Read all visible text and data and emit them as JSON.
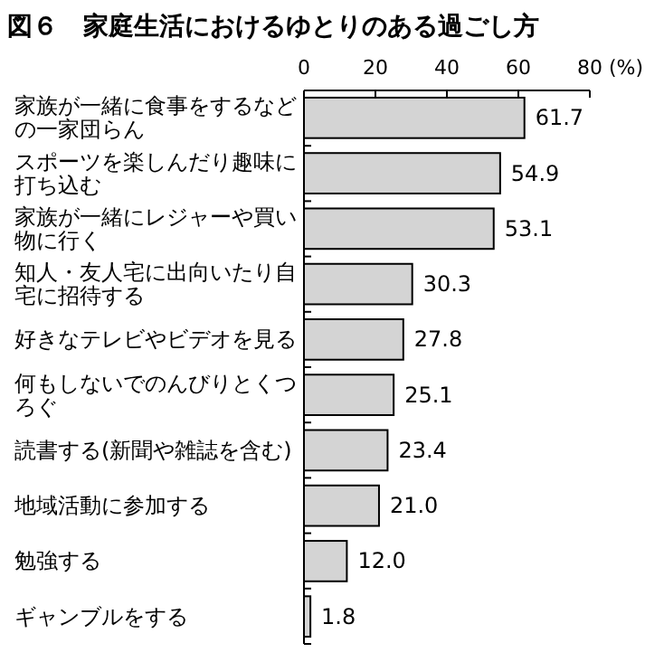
{
  "chart_data": {
    "type": "bar",
    "orientation": "horizontal",
    "title": "図６　家庭生活におけるゆとりのある過ごし方",
    "xlabel": "(%)",
    "categories": [
      "家族が一緒に食事をするなどの一家団らん",
      "スポーツを楽しんだり趣味に打ち込む",
      "家族が一緒にレジャーや買い物に行く",
      "知人・友人宅に出向いたり自宅に招待する",
      "好きなテレビやビデオを見る",
      "何もしないでのんびりとくつろぐ",
      "読書する(新聞や雑誌を含む)",
      "地域活動に参加する",
      "勉強する",
      "ギャンブルをする"
    ],
    "values": [
      61.7,
      54.9,
      53.1,
      30.3,
      27.8,
      25.1,
      23.4,
      21.0,
      12.0,
      1.8
    ],
    "value_labels": [
      "61.7",
      "54.9",
      "53.1",
      "30.3",
      "27.8",
      "25.1",
      "23.4",
      "21.0",
      "12.0",
      "1.8"
    ],
    "color": "#d4d4d4",
    "xlim": [
      0,
      80
    ],
    "xticks": [
      0,
      20,
      40,
      60,
      80
    ],
    "grid": false
  }
}
